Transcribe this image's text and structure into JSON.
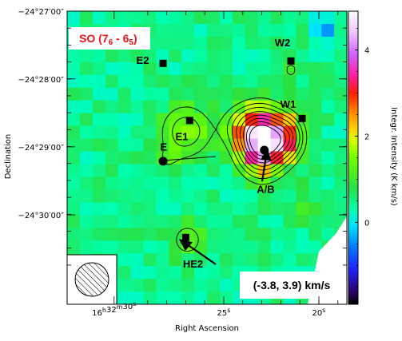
{
  "chart_data": {
    "type": "heatmap",
    "title": "SO (7",
    "title_sub1": "6",
    "title_mid": " - 6",
    "title_sub2": "5",
    "title_close": ")",
    "velocity_range": "(-3.8, 3.9) km/s",
    "xlabel": "Right Ascension",
    "ylabel": "Declination",
    "colorbar_label": "Integr. Intensity (K km/s)",
    "colorbar_range": [
      -1.9,
      4.9
    ],
    "colorbar_ticks": [
      {
        "value": 0,
        "label": "0"
      },
      {
        "value": 2,
        "label": "2"
      },
      {
        "value": 4,
        "label": "4"
      }
    ],
    "x_ticks": [
      {
        "label_parts": [
          "16",
          "h",
          "32",
          "m",
          "30",
          "s"
        ],
        "position": 0.168
      },
      {
        "label_parts": [
          "25",
          "s"
        ],
        "position": 0.56
      },
      {
        "label_parts": [
          "20",
          "s"
        ],
        "position": 0.9
      }
    ],
    "y_ticks": [
      {
        "label": "−24°27′00″",
        "position": 0.0
      },
      {
        "label": "−24°28′00″",
        "position": 0.231
      },
      {
        "label": "−24°29′00″",
        "position": 0.463
      },
      {
        "label": "−24°30′00″",
        "position": 0.695
      }
    ],
    "sources": [
      {
        "name": "E2",
        "marker": "square",
        "px": 0.343,
        "py": 0.178,
        "lx": 0.27,
        "ly": 0.18
      },
      {
        "name": "W2",
        "marker": "square",
        "px": 0.8,
        "py": 0.17,
        "lx": 0.77,
        "ly": 0.12
      },
      {
        "name": "W1",
        "marker": "square",
        "px": 0.84,
        "py": 0.366,
        "lx": 0.79,
        "ly": 0.33
      },
      {
        "name": "E1",
        "marker": "square",
        "px": 0.438,
        "py": 0.373,
        "lx": 0.41,
        "ly": 0.44
      },
      {
        "name": "A/B",
        "marker": "circle",
        "px": 0.705,
        "py": 0.474,
        "lx": 0.71,
        "ly": 0.62
      },
      {
        "name": "E",
        "marker": "circle",
        "px": 0.343,
        "py": 0.512,
        "lx": 0.345,
        "ly": 0.475
      },
      {
        "name": "HE2",
        "marker": "square",
        "px": 0.424,
        "py": 0.772,
        "lx": 0.45,
        "ly": 0.875
      }
    ],
    "emission_peaks": [
      {
        "x": 0.698,
        "y": 0.445,
        "amp": 4.8,
        "sx": 0.055,
        "sy": 0.07
      },
      {
        "x": 0.79,
        "y": 0.43,
        "amp": 1.9,
        "sx": 0.04,
        "sy": 0.05
      },
      {
        "x": 0.425,
        "y": 0.41,
        "amp": 1.25,
        "sx": 0.065,
        "sy": 0.065
      },
      {
        "x": 0.62,
        "y": 0.39,
        "amp": 0.9,
        "sx": 0.05,
        "sy": 0.05
      },
      {
        "x": 0.8,
        "y": 0.2,
        "amp": 0.6,
        "sx": 0.035,
        "sy": 0.04
      },
      {
        "x": 0.43,
        "y": 0.78,
        "amp": 0.75,
        "sx": 0.05,
        "sy": 0.05
      },
      {
        "x": 0.35,
        "y": 0.52,
        "amp": 0.4,
        "sx": 0.04,
        "sy": 0.04
      },
      {
        "x": 0.86,
        "y": 0.65,
        "amp": 0.45,
        "sx": 0.04,
        "sy": 0.06
      },
      {
        "x": 0.92,
        "y": 0.06,
        "amp": -1.2,
        "sx": 0.03,
        "sy": 0.03
      },
      {
        "x": 0.98,
        "y": 0.9,
        "amp": -0.8,
        "sx": 0.03,
        "sy": 0.05
      }
    ]
  },
  "colors": {
    "label_red": "#e8141c",
    "frame": "#000000",
    "contour": "#000000"
  }
}
